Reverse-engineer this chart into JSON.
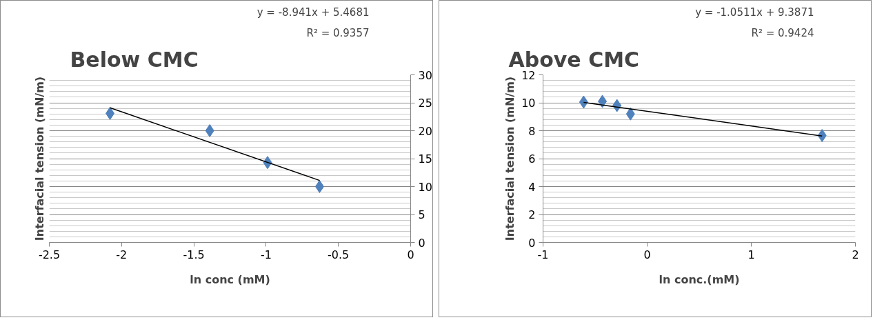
{
  "chart_data": [
    {
      "type": "scatter",
      "title": "Below CMC",
      "xlabel": "ln conc (mM)",
      "ylabel": "Interfacial tension (mN/m)",
      "annotations": [
        "y = -8.941x + 5.4681",
        "R² = 0.9357"
      ],
      "xlim": [
        -2.5,
        0
      ],
      "xticks": [
        -2.5,
        -2,
        -1.5,
        -1,
        -0.5,
        0
      ],
      "ylim": [
        0,
        30
      ],
      "yticks": [
        0,
        5,
        10,
        15,
        20,
        25,
        30
      ],
      "grid": "y",
      "marker": "diamond",
      "series": [
        {
          "color": "#4f81bd",
          "x": [
            -2.08,
            -1.39,
            -0.99,
            -0.63
          ],
          "values": [
            23.1,
            20,
            14.3,
            10
          ]
        },
        {
          "type": "line",
          "marker": "none",
          "color": "#000000",
          "x": [
            -2.08,
            -0.63
          ],
          "values": [
            24.1,
            11.1
          ]
        }
      ]
    },
    {
      "type": "scatter",
      "title": "Above CMC",
      "xlabel": "ln conc.(mM)",
      "ylabel": "Interfacial tension (mN/m)",
      "annotations": [
        "y = -1.0511x + 9.3871",
        "R² = 0.9424"
      ],
      "xlim": [
        -1,
        2
      ],
      "xticks": [
        -1,
        0,
        1,
        2
      ],
      "ylim": [
        0,
        12
      ],
      "yticks": [
        0,
        2,
        4,
        6,
        8,
        10,
        12
      ],
      "grid": "y",
      "marker": "diamond",
      "series": [
        {
          "color": "#4f81bd",
          "x": [
            -0.61,
            -0.43,
            -0.29,
            -0.16,
            1.68
          ],
          "values": [
            10.05,
            10.1,
            9.8,
            9.2,
            7.65
          ]
        },
        {
          "type": "line",
          "marker": "none",
          "color": "#000000",
          "x": [
            -0.61,
            1.68
          ],
          "values": [
            10.03,
            7.62
          ]
        }
      ]
    }
  ]
}
